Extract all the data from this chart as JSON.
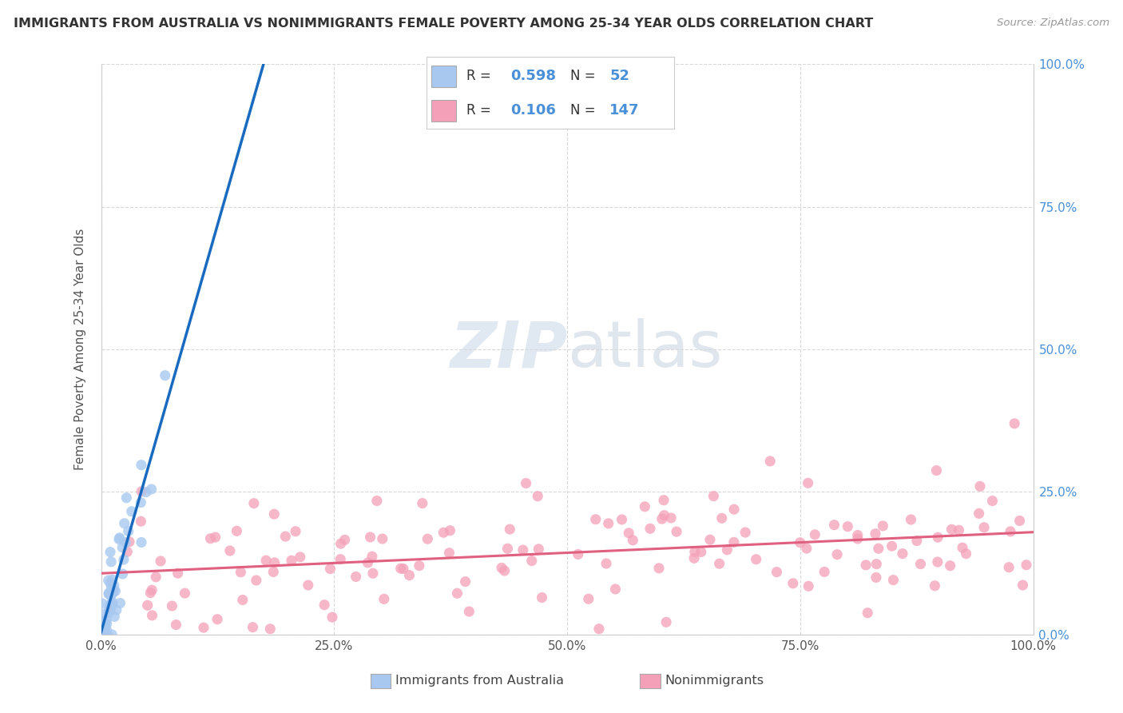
{
  "title": "IMMIGRANTS FROM AUSTRALIA VS NONIMMIGRANTS FEMALE POVERTY AMONG 25-34 YEAR OLDS CORRELATION CHART",
  "source": "Source: ZipAtlas.com",
  "ylabel": "Female Poverty Among 25-34 Year Olds",
  "xlim": [
    0,
    1.0
  ],
  "ylim": [
    0,
    1.0
  ],
  "blue_R": 0.598,
  "blue_N": 52,
  "pink_R": 0.106,
  "pink_N": 147,
  "blue_color": "#a8c8f0",
  "blue_line_color": "#1a6bbf",
  "pink_color": "#f4a0b8",
  "pink_line_color": "#e06080",
  "legend_blue_label": "Immigrants from Australia",
  "legend_pink_label": "Nonimmigrants",
  "watermark_zip": "ZIP",
  "watermark_atlas": "atlas",
  "background_color": "#ffffff",
  "grid_color": "#d8d8d8",
  "right_tick_color": "#4a90d9",
  "title_color": "#333333",
  "source_color": "#999999"
}
